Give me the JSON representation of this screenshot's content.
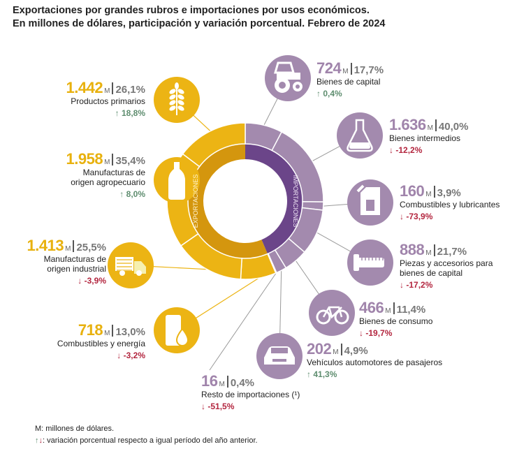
{
  "title": {
    "line1": "Exportaciones por grandes rubros e importaciones por usos económicos.",
    "line2": "En millones de dólares, participación y variación porcentual. Febrero de 2024"
  },
  "colors": {
    "exports_outer": "#ecb414",
    "exports_inner": "#d4960e",
    "imports_outer": "#a38aae",
    "imports_inner": "#6b4589",
    "up": "#5e8d6f",
    "down": "#b3263f"
  },
  "ring": {
    "exports_label": "EXPORTACIONES",
    "imports_label": "IMPORTACIONES"
  },
  "unit": "M",
  "exports": [
    {
      "value": "1.442",
      "share": "26,1%",
      "name": "Productos primarios",
      "change": "18,8%",
      "direction": "up",
      "icon": "wheat-icon"
    },
    {
      "value": "1.958",
      "share": "35,4%",
      "name": "Manufacturas de origen agropecuario",
      "change": "8,0%",
      "direction": "up",
      "icon": "bottle-icon"
    },
    {
      "value": "1.413",
      "share": "25,5%",
      "name": "Manufacturas de origen industrial",
      "change": "-3,9%",
      "direction": "down",
      "icon": "truck-icon"
    },
    {
      "value": "718",
      "share": "13,0%",
      "name": "Combustibles y energía",
      "change": "-3,2%",
      "direction": "down",
      "icon": "fuel-barrel-icon"
    }
  ],
  "imports": [
    {
      "value": "724",
      "share": "17,7%",
      "name": "Bienes de capital",
      "change": "0,4%",
      "direction": "up",
      "icon": "tractor-icon"
    },
    {
      "value": "1.636",
      "share": "40,0%",
      "name": "Bienes intermedios",
      "change": "-12,2%",
      "direction": "down",
      "icon": "flask-icon"
    },
    {
      "value": "160",
      "share": "3,9%",
      "name": "Combustibles y lubricantes",
      "change": "-73,9%",
      "direction": "down",
      "icon": "jerrycan-icon"
    },
    {
      "value": "888",
      "share": "21,7%",
      "name": "Piezas y accesorios para bienes de capital",
      "change": "-17,2%",
      "direction": "down",
      "icon": "screw-icon"
    },
    {
      "value": "466",
      "share": "11,4%",
      "name": "Bienes de consumo",
      "change": "-19,7%",
      "direction": "down",
      "icon": "bicycle-icon"
    },
    {
      "value": "202",
      "share": "4,9%",
      "name": "Vehículos automotores de pasajeros",
      "change": "41,3%",
      "direction": "up",
      "icon": "car-icon"
    },
    {
      "value": "16",
      "share": "0,4%",
      "name": "Resto de importaciones (¹)",
      "change": "-51,5%",
      "direction": "down",
      "icon": ""
    }
  ],
  "footer": {
    "unit_note": "M: millones de dólares.",
    "arrow_note": ": variación porcentual respecto a igual período del año anterior."
  },
  "chart_data": {
    "type": "pie",
    "title": "Exportaciones por grandes rubros e importaciones por usos económicos. Febrero de 2024",
    "series": [
      {
        "name": "Exportaciones",
        "categories": [
          "Productos primarios",
          "Manufacturas de origen agropecuario",
          "Manufacturas de origen industrial",
          "Combustibles y energía"
        ],
        "values": [
          1442,
          1958,
          1413,
          718
        ],
        "shares": [
          26.1,
          35.4,
          25.5,
          13.0
        ],
        "changes": [
          18.8,
          8.0,
          -3.9,
          -3.2
        ]
      },
      {
        "name": "Importaciones",
        "categories": [
          "Bienes de capital",
          "Bienes intermedios",
          "Combustibles y lubricantes",
          "Piezas y accesorios para bienes de capital",
          "Bienes de consumo",
          "Vehículos automotores de pasajeros",
          "Resto de importaciones"
        ],
        "values": [
          724,
          1636,
          160,
          888,
          466,
          202,
          16
        ],
        "shares": [
          17.7,
          40.0,
          3.9,
          21.7,
          11.4,
          4.9,
          0.4
        ],
        "changes": [
          0.4,
          -12.2,
          -73.9,
          -17.2,
          -19.7,
          41.3,
          -51.5
        ]
      }
    ]
  }
}
